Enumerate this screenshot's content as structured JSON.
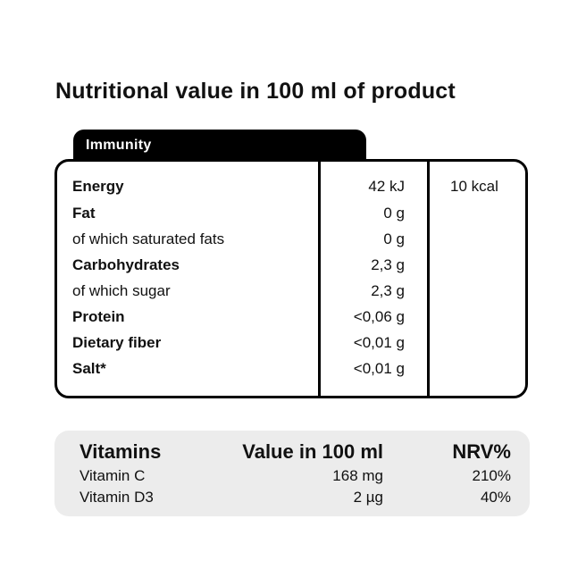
{
  "title": "Nutritional value in 100 ml of product",
  "tab_label": "Immunity",
  "nutrition": {
    "energy_kcal": "10 kcal",
    "rows": [
      {
        "label": "Energy",
        "value": "42 kJ",
        "bold": true
      },
      {
        "label": "Fat",
        "value": "0 g",
        "bold": true
      },
      {
        "label": "of which saturated fats",
        "value": "0 g",
        "bold": false
      },
      {
        "label": "Carbohydrates",
        "value": "2,3 g",
        "bold": true
      },
      {
        "label": "of which sugar",
        "value": "2,3 g",
        "bold": false
      },
      {
        "label": "Protein",
        "value": "<0,06 g",
        "bold": true
      },
      {
        "label": "Dietary fiber",
        "value": "<0,01 g",
        "bold": true
      },
      {
        "label": "Salt*",
        "value": "<0,01 g",
        "bold": true
      }
    ]
  },
  "vitamins": {
    "header": {
      "name": "Vitamins",
      "value": "Value in 100 ml",
      "nrv": "NRV%"
    },
    "rows": [
      {
        "name": "Vitamin C",
        "amount": "168 mg",
        "nrv": "210%"
      },
      {
        "name": "Vitamin D3",
        "amount": "2 µg",
        "nrv": "40%"
      }
    ]
  }
}
